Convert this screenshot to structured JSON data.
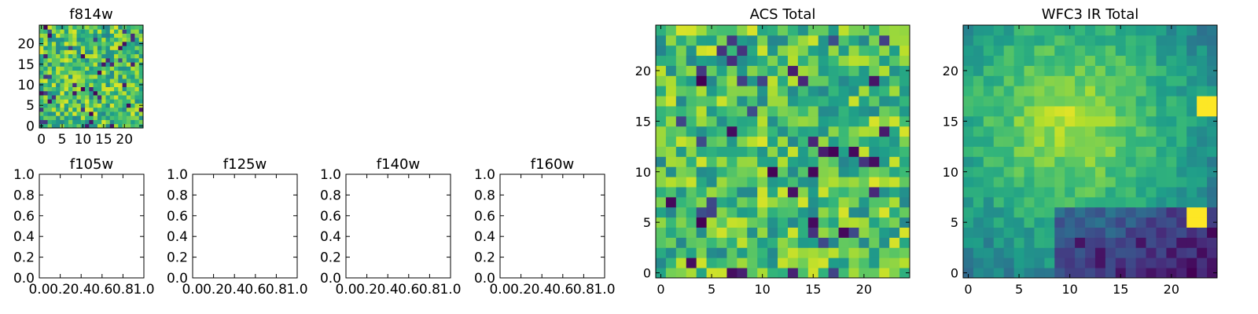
{
  "chart_data": [
    {
      "id": "f814w",
      "type": "heatmap",
      "title": "f814w",
      "colormap": "viridis",
      "grid_size": 25,
      "xlim": [
        -0.5,
        24.5
      ],
      "ylim": [
        -0.5,
        24.5
      ],
      "xticks": [
        0,
        5,
        10,
        15,
        20
      ],
      "yticks": [
        0,
        5,
        10,
        15,
        20
      ],
      "xtick_labels": [
        "0",
        "5",
        "10",
        "15",
        "20"
      ],
      "ytick_labels": [
        "0",
        "5",
        "10",
        "15",
        "20"
      ],
      "xlabel": "",
      "ylabel": "",
      "pattern": "noise",
      "seed": 11
    },
    {
      "id": "f105w",
      "type": "empty",
      "title": "f105w",
      "xlim": [
        0,
        1
      ],
      "ylim": [
        0,
        1
      ],
      "xticks": [
        0,
        0.2,
        0.4,
        0.6,
        0.8,
        1.0
      ],
      "yticks": [
        0,
        0.2,
        0.4,
        0.6,
        0.8,
        1.0
      ],
      "xtick_labels": [
        "0.0",
        "0.2",
        "0.4",
        "0.6",
        "0.8",
        "1.0"
      ],
      "ytick_labels": [
        "0.0",
        "0.2",
        "0.4",
        "0.6",
        "0.8",
        "1.0"
      ],
      "xlabel": "",
      "ylabel": ""
    },
    {
      "id": "f125w",
      "type": "empty",
      "title": "f125w",
      "xlim": [
        0,
        1
      ],
      "ylim": [
        0,
        1
      ],
      "xticks": [
        0,
        0.2,
        0.4,
        0.6,
        0.8,
        1.0
      ],
      "yticks": [
        0,
        0.2,
        0.4,
        0.6,
        0.8,
        1.0
      ],
      "xtick_labels": [
        "0.0",
        "0.2",
        "0.4",
        "0.6",
        "0.8",
        "1.0"
      ],
      "ytick_labels": [
        "0.0",
        "0.2",
        "0.4",
        "0.6",
        "0.8",
        "1.0"
      ],
      "xlabel": "",
      "ylabel": ""
    },
    {
      "id": "f140w",
      "type": "empty",
      "title": "f140w",
      "xlim": [
        0,
        1
      ],
      "ylim": [
        0,
        1
      ],
      "xticks": [
        0,
        0.2,
        0.4,
        0.6,
        0.8,
        1.0
      ],
      "yticks": [
        0,
        0.2,
        0.4,
        0.6,
        0.8,
        1.0
      ],
      "xtick_labels": [
        "0.0",
        "0.2",
        "0.4",
        "0.6",
        "0.8",
        "1.0"
      ],
      "ytick_labels": [
        "0.0",
        "0.2",
        "0.4",
        "0.6",
        "0.8",
        "1.0"
      ],
      "xlabel": "",
      "ylabel": ""
    },
    {
      "id": "f160w",
      "type": "empty",
      "title": "f160w",
      "xlim": [
        0,
        1
      ],
      "ylim": [
        0,
        1
      ],
      "xticks": [
        0,
        0.2,
        0.4,
        0.6,
        0.8,
        1.0
      ],
      "yticks": [
        0,
        0.2,
        0.4,
        0.6,
        0.8,
        1.0
      ],
      "xtick_labels": [
        "0.0",
        "0.2",
        "0.4",
        "0.6",
        "0.8",
        "1.0"
      ],
      "ytick_labels": [
        "0.0",
        "0.2",
        "0.4",
        "0.6",
        "0.8",
        "1.0"
      ],
      "xlabel": "",
      "ylabel": ""
    },
    {
      "id": "acs-total",
      "type": "heatmap",
      "title": "ACS Total",
      "colormap": "viridis",
      "grid_size": 25,
      "xlim": [
        -0.5,
        24.5
      ],
      "ylim": [
        -0.5,
        24.5
      ],
      "xticks": [
        0,
        5,
        10,
        15,
        20
      ],
      "yticks": [
        0,
        5,
        10,
        15,
        20
      ],
      "xtick_labels": [
        "0",
        "5",
        "10",
        "15",
        "20"
      ],
      "ytick_labels": [
        "0",
        "5",
        "10",
        "15",
        "20"
      ],
      "xlabel": "",
      "ylabel": "",
      "pattern": "noise",
      "seed": 29
    },
    {
      "id": "wfc3-ir-total",
      "type": "heatmap",
      "title": "WFC3 IR Total",
      "colormap": "viridis",
      "grid_size": 25,
      "xlim": [
        -0.5,
        24.5
      ],
      "ylim": [
        -0.5,
        24.5
      ],
      "xticks": [
        0,
        5,
        10,
        15,
        20
      ],
      "yticks": [
        0,
        5,
        10,
        15,
        20
      ],
      "xtick_labels": [
        "0",
        "5",
        "10",
        "15",
        "20"
      ],
      "ytick_labels": [
        "0",
        "5",
        "10",
        "15",
        "20"
      ],
      "xlabel": "",
      "ylabel": "",
      "pattern": "smooth",
      "seed": 7,
      "bright_patches": [
        {
          "x": [
            23,
            24
          ],
          "y": [
            16,
            17
          ]
        },
        {
          "x": [
            22,
            23
          ],
          "y": [
            5,
            6
          ]
        }
      ]
    }
  ]
}
